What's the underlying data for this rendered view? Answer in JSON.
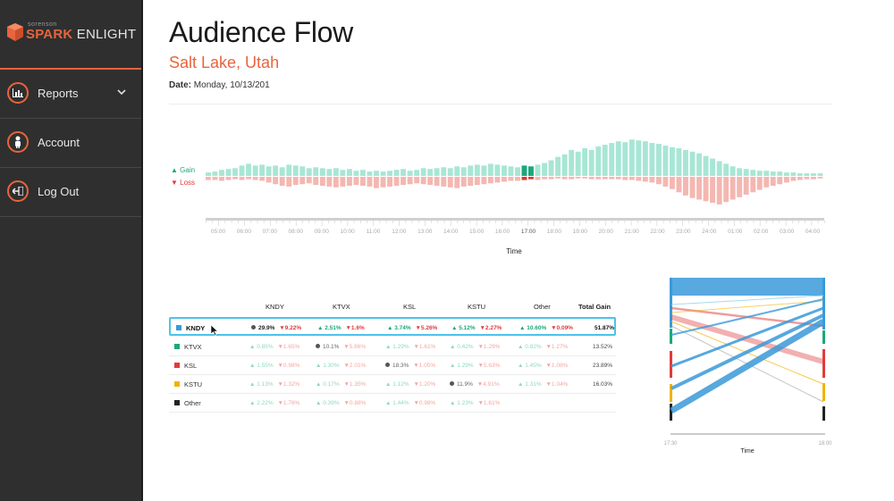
{
  "app": {
    "logo_small": "sorenson",
    "logo_brand": "SPARK",
    "logo_product": "ENLIGHT"
  },
  "nav": [
    {
      "label": "Reports",
      "icon": "bar-chart-icon",
      "expandable": true
    },
    {
      "label": "Account",
      "icon": "person-icon",
      "expandable": false
    },
    {
      "label": "Log Out",
      "icon": "logout-icon",
      "expandable": false
    }
  ],
  "header": {
    "title": "Audience Flow",
    "location": "Salt Lake, Utah",
    "date_label": "Date:",
    "date_value": "Monday, 10/13/201"
  },
  "colors": {
    "accent": "#e8643c",
    "gain": "#a8e6d4",
    "gain_highlight": "#1aa87a",
    "loss": "#f4b7b1",
    "loss_highlight": "#d93a2b",
    "selection": "#4cc3ea",
    "kndy": "#3a9ad9",
    "ktvx": "#1aa87a",
    "ksl": "#e13b3b",
    "kstu": "#f0b400",
    "other": "#222222"
  },
  "chart_data": [
    {
      "type": "bar",
      "legend": [
        "▲ Gain",
        "▼ Loss"
      ],
      "xlabel": "Time",
      "ticks": [
        "05:00",
        "06:00",
        "07:00",
        "08:00",
        "09:00",
        "10:00",
        "11:00",
        "12:00",
        "13:00",
        "14:00",
        "15:00",
        "16:00",
        "17:00",
        "18:00",
        "19:00",
        "20:00",
        "21:00",
        "22:00",
        "23:00",
        "24:00",
        "01:00",
        "02:00",
        "03:00",
        "04:00"
      ],
      "highlight_bars": [
        2,
        3
      ],
      "highlight_tick": "17:00",
      "series": [
        {
          "name": "Gain",
          "values": [
            4,
            5,
            7,
            8,
            9,
            12,
            14,
            12,
            13,
            11,
            12,
            10,
            13,
            12,
            11,
            9,
            10,
            9,
            8,
            9,
            7,
            8,
            6,
            7,
            5,
            6,
            5,
            6,
            7,
            8,
            6,
            7,
            9,
            8,
            9,
            10,
            9,
            11,
            10,
            12,
            13,
            12,
            14,
            13,
            12,
            11,
            10,
            12,
            11,
            13,
            15,
            18,
            22,
            25,
            30,
            28,
            32,
            30,
            34,
            36,
            38,
            40,
            39,
            42,
            41,
            40,
            38,
            37,
            35,
            33,
            32,
            30,
            28,
            26,
            23,
            20,
            17,
            14,
            11,
            9,
            8,
            7,
            6,
            6,
            5,
            5,
            4,
            4,
            3,
            3,
            3,
            3
          ]
        },
        {
          "name": "Loss",
          "values": [
            4,
            4,
            5,
            4,
            3,
            4,
            3,
            4,
            5,
            7,
            9,
            11,
            12,
            10,
            9,
            8,
            10,
            11,
            12,
            13,
            12,
            11,
            10,
            11,
            12,
            14,
            13,
            12,
            11,
            10,
            9,
            8,
            9,
            10,
            11,
            12,
            13,
            14,
            12,
            11,
            10,
            9,
            8,
            7,
            6,
            5,
            5,
            4,
            3,
            4,
            3,
            3,
            2,
            3,
            3,
            2,
            2,
            3,
            3,
            3,
            3,
            3,
            4,
            4,
            5,
            6,
            7,
            9,
            12,
            15,
            19,
            23,
            26,
            28,
            30,
            32,
            34,
            31,
            28,
            25,
            22,
            19,
            16,
            13,
            11,
            9,
            7,
            5,
            4,
            3,
            3,
            2
          ]
        }
      ]
    },
    {
      "type": "table",
      "columns": [
        "KNDY",
        "KTVX",
        "KSL",
        "KSTU",
        "Other",
        "Total Gain"
      ],
      "rows": [
        {
          "station": "KNDY",
          "cells": [
            "29.9%|9.22%",
            "2.51%|1.6%",
            "3.74%|5.26%",
            "5.12%|2.27%",
            "10.60%|0.09%"
          ],
          "total": "51.87%"
        },
        {
          "station": "KTVX",
          "cells": [
            "0.85%|1.65%",
            "10.1%|5.86%",
            "1.29%|1.61%",
            "0.42%|1.29%",
            "0.82%|1.27%"
          ],
          "total": "13.52%"
        },
        {
          "station": "KSL",
          "cells": [
            "1.55%|0.98%",
            "1.30%|2.01%",
            "18.3%|1.05%",
            "1.29%|5.63%",
            "1.45%|1.08%"
          ],
          "total": "23.89%"
        },
        {
          "station": "KSTU",
          "cells": [
            "1.13%|1.32%",
            "0.17%|1.35%",
            "1.12%|1.20%",
            "11.9%|4.91%",
            "1.31%|1.04%"
          ],
          "total": "16.03%"
        },
        {
          "station": "Other",
          "cells": [
            "2.22%|1.76%",
            "0.39%|0.88%",
            "1.44%|0.98%",
            "1.23%|1.61%",
            ""
          ],
          "total": ""
        }
      ]
    },
    {
      "type": "line",
      "xlabel": "Time",
      "x": [
        "17:30",
        "18:00"
      ]
    }
  ],
  "table": {
    "headers": [
      "KNDY",
      "KTVX",
      "KSL",
      "KSTU",
      "Other",
      "Total Gain"
    ],
    "rows": [
      {
        "name": "KNDY",
        "color": "#3a9ad9",
        "selected": true,
        "cells": [
          {
            "self": "29.9%",
            "loss": "9.22%"
          },
          {
            "gain": "2.51%",
            "loss": "1.6%"
          },
          {
            "gain": "3.74%",
            "loss": "5.26%"
          },
          {
            "gain": "5.12%",
            "loss": "2.27%"
          },
          {
            "gain": "10.60%",
            "loss": "0.09%"
          }
        ],
        "total": "51.87%"
      },
      {
        "name": "KTVX",
        "color": "#1aa87a",
        "selected": false,
        "cells": [
          {
            "gain": "0.85%",
            "loss": "1.65%"
          },
          {
            "self": "10.1%",
            "loss": "5.86%"
          },
          {
            "gain": "1.29%",
            "loss": "1.61%"
          },
          {
            "gain": "0.42%",
            "loss": "1.29%"
          },
          {
            "gain": "0.82%",
            "loss": "1.27%"
          }
        ],
        "total": "13.52%"
      },
      {
        "name": "KSL",
        "color": "#e13b3b",
        "selected": false,
        "cells": [
          {
            "gain": "1.55%",
            "loss": "0.98%"
          },
          {
            "gain": "1.30%",
            "loss": "2.01%"
          },
          {
            "self": "18.3%",
            "loss": "1.05%"
          },
          {
            "gain": "1.29%",
            "loss": "5.63%"
          },
          {
            "gain": "1.45%",
            "loss": "1.08%"
          }
        ],
        "total": "23.89%"
      },
      {
        "name": "KSTU",
        "color": "#f0b400",
        "selected": false,
        "cells": [
          {
            "gain": "1.13%",
            "loss": "1.32%"
          },
          {
            "gain": "0.17%",
            "loss": "1.35%"
          },
          {
            "gain": "1.12%",
            "loss": "1.20%"
          },
          {
            "self": "11.9%",
            "loss": "4.91%"
          },
          {
            "gain": "1.31%",
            "loss": "1.04%"
          }
        ],
        "total": "16.03%"
      },
      {
        "name": "Other",
        "color": "#222222",
        "selected": false,
        "cells": [
          {
            "gain": "2.22%",
            "loss": "1.76%"
          },
          {
            "gain": "0.39%",
            "loss": "0.88%"
          },
          {
            "gain": "1.44%",
            "loss": "0.98%"
          },
          {
            "gain": "1.23%",
            "loss": "1.61%"
          },
          null
        ],
        "total": ""
      }
    ]
  },
  "flow": {
    "xlabel": "Time",
    "start": "17:30",
    "end": "18:00"
  }
}
